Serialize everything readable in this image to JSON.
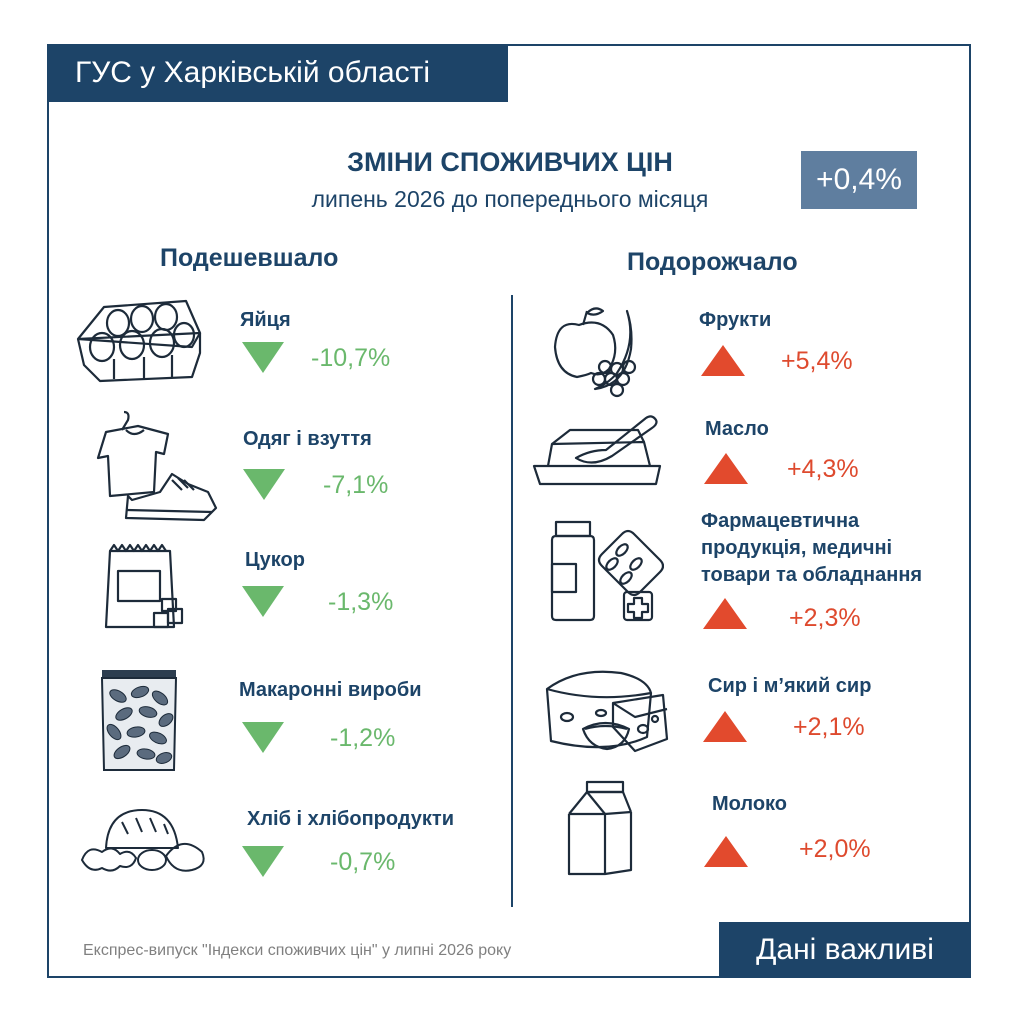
{
  "header": {
    "org": "ГУС у Харківській області"
  },
  "title": {
    "main": "ЗМІНИ СПОЖИВЧИХ ЦІН",
    "sub": "липень 2026 до попереднього місяця",
    "total": "+0,4%"
  },
  "cheaper": {
    "heading": "Подешевшало",
    "items": [
      {
        "name": "Яйця",
        "value": "-10,7%",
        "icon": "eggs-icon"
      },
      {
        "name": "Одяг і взуття",
        "value": "-7,1%",
        "icon": "clothes-icon"
      },
      {
        "name": "Цукор",
        "value": "-1,3%",
        "icon": "sugar-icon"
      },
      {
        "name": "Макаронні вироби",
        "value": "-1,2%",
        "icon": "pasta-icon"
      },
      {
        "name": "Хліб і хлібопродукти",
        "value": "-0,7%",
        "icon": "bread-icon"
      }
    ]
  },
  "pricier": {
    "heading": "Подорожчало",
    "items": [
      {
        "name": "Фрукти",
        "value": "+5,4%",
        "icon": "fruit-icon"
      },
      {
        "name": "Масло",
        "value": "+4,3%",
        "icon": "butter-icon"
      },
      {
        "name_lines": [
          "Фармацевтична",
          "продукція, медичні",
          "товари та обладнання"
        ],
        "value": "+2,3%",
        "icon": "pharmacy-icon"
      },
      {
        "name": "Сир і м’який сир",
        "value": "+2,1%",
        "icon": "cheese-icon"
      },
      {
        "name": "Молоко",
        "value": "+2,0%",
        "icon": "milk-icon"
      }
    ]
  },
  "colors": {
    "navy": "#1d4468",
    "badge": "#5f7e9f",
    "down": "#6ab86c",
    "up": "#e24a2d"
  },
  "footer": {
    "note": "Експрес-випуск \"Індекси споживчих цін\" у липні 2026 року",
    "tag": "Дані важливі"
  }
}
